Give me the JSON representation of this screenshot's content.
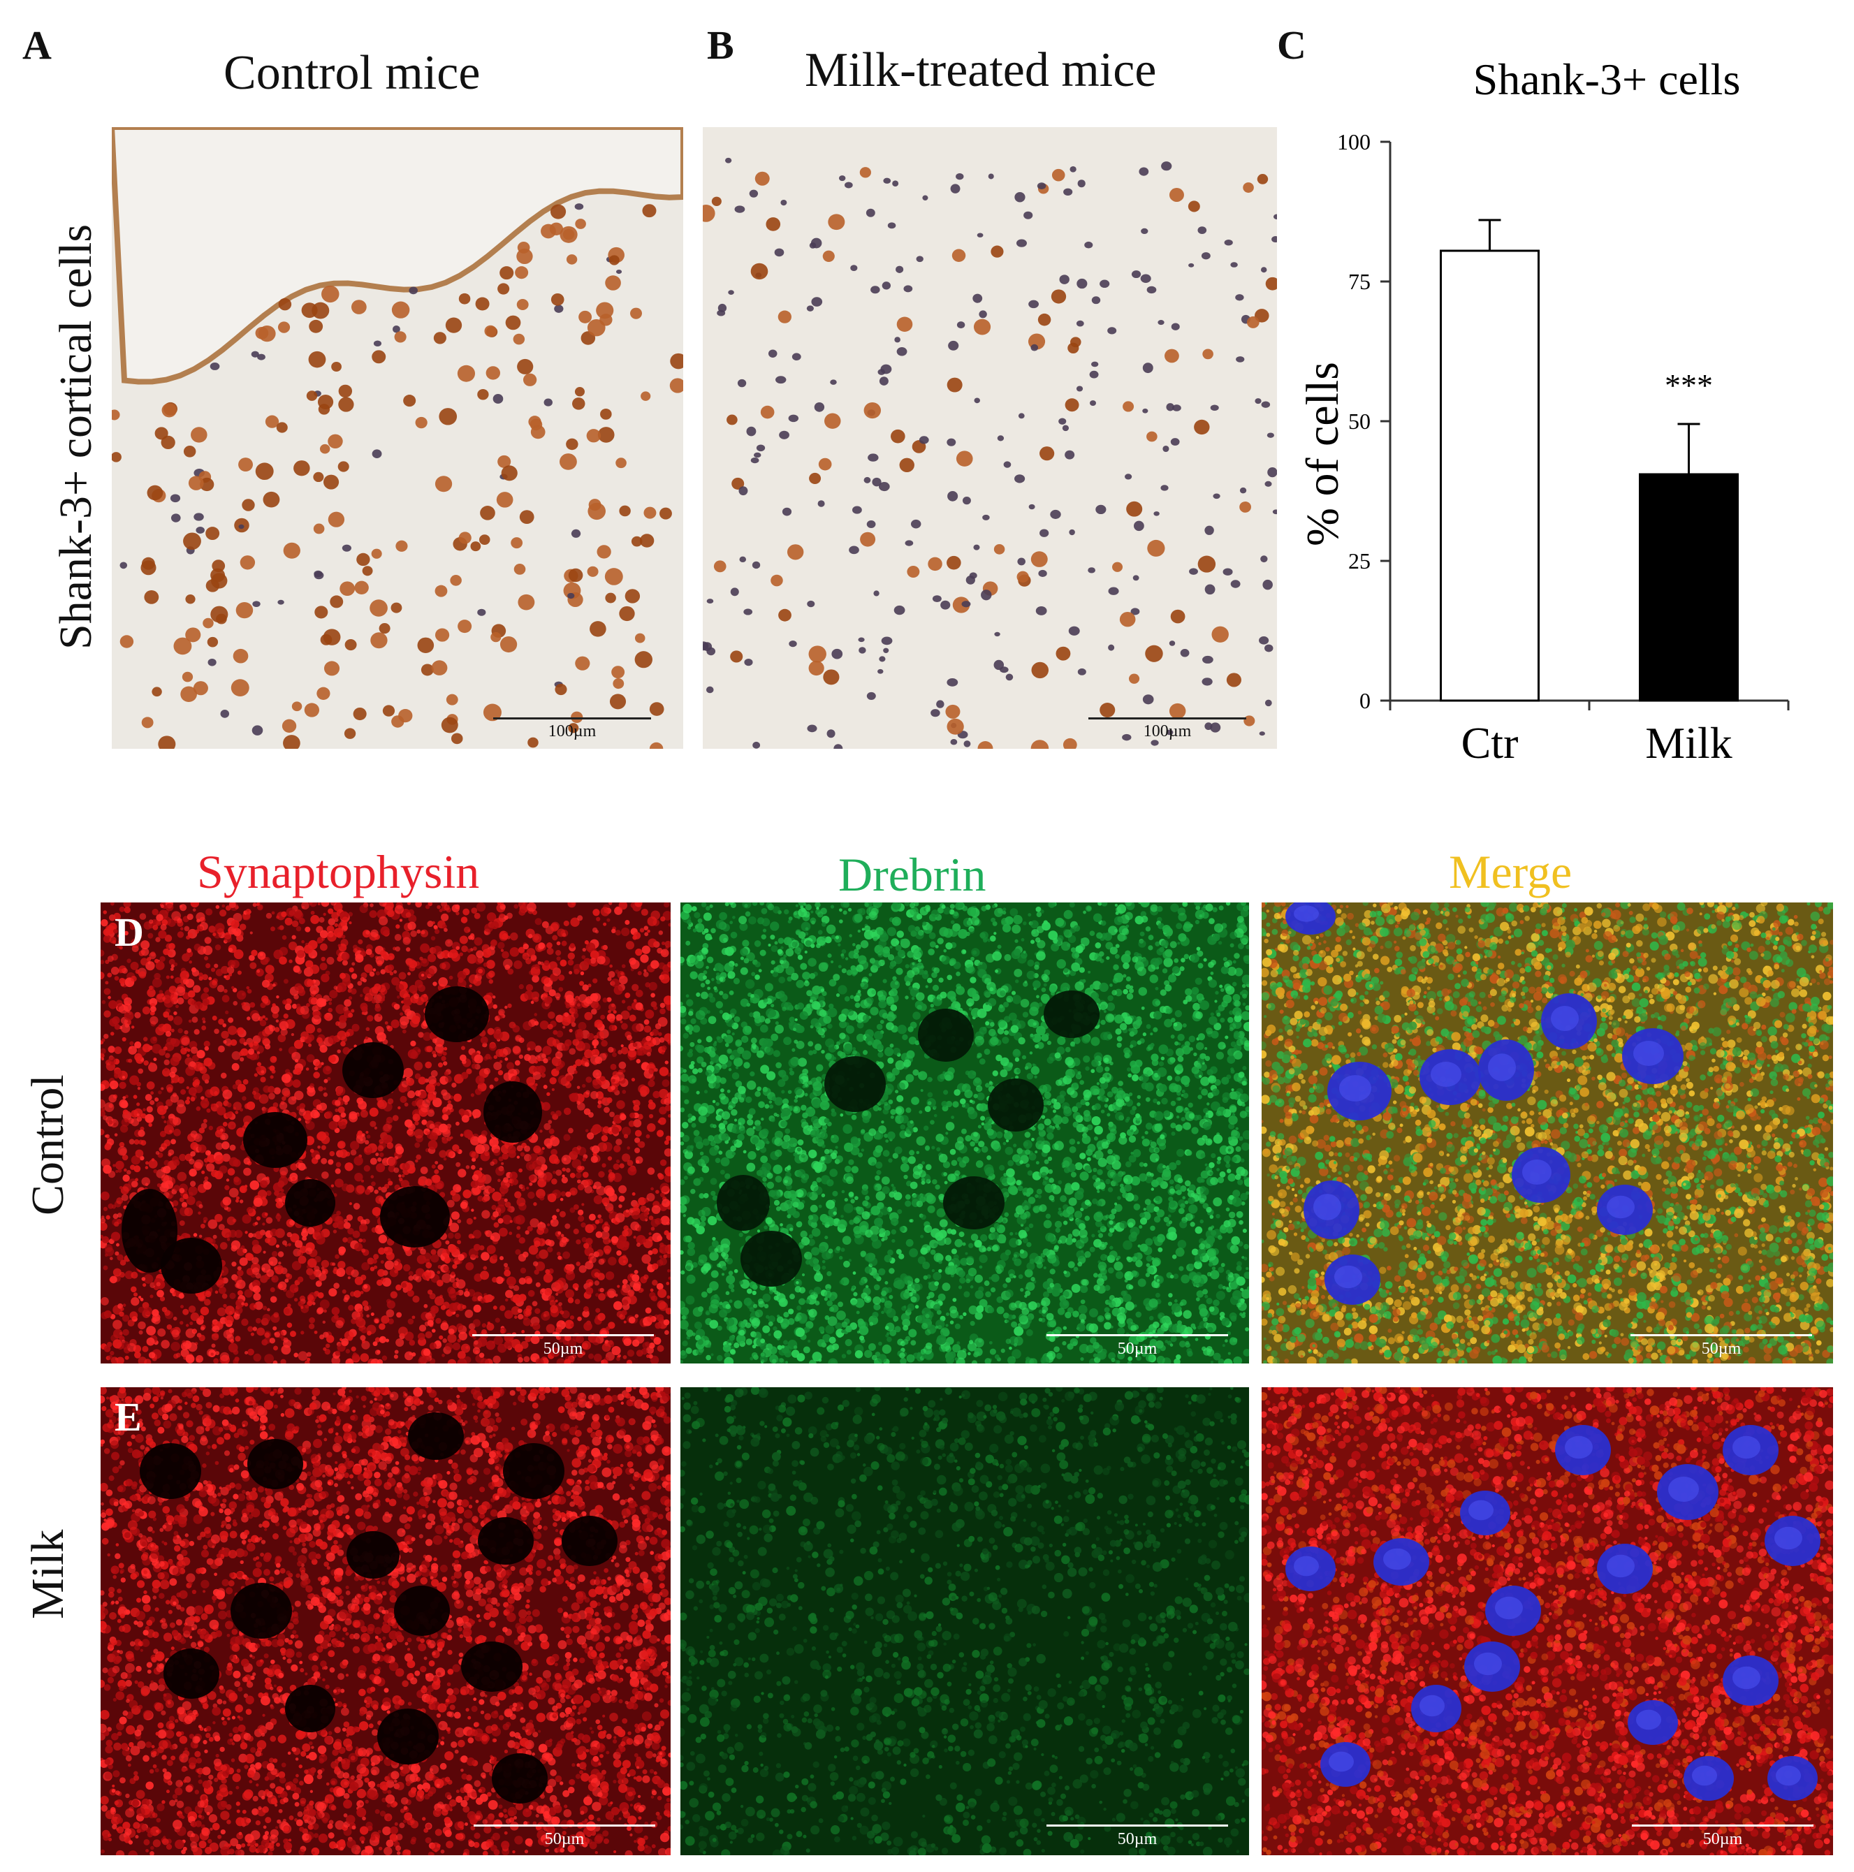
{
  "panels": {
    "A": {
      "letter": "A",
      "title": "Control mice",
      "scale_bar": "100µm"
    },
    "B": {
      "letter": "B",
      "title": "Milk-treated mice",
      "scale_bar": "100µm"
    },
    "C": {
      "letter": "C"
    },
    "D": {
      "letter": "D"
    },
    "E": {
      "letter": "E"
    }
  },
  "row_labels": {
    "ihc": "Shank-3+ cortical cells",
    "control": "Control",
    "milk": "Milk"
  },
  "column_labels": {
    "synaptophysin": "Synaptophysin",
    "drebrin": "Drebrin",
    "merge": "Merge"
  },
  "fluorescence_scale_bar": "50µm",
  "colors": {
    "synaptophysin": "#e8202a",
    "drebrin": "#1fae5a",
    "merge": "#f0c020",
    "ihc_positive": "#a8511a",
    "ihc_negative": "#4a3d55",
    "nuclei": "#2a2fd0"
  },
  "chart_data": {
    "type": "bar",
    "title": "Shank-3+ cells",
    "categories": [
      "Ctr",
      "Milk"
    ],
    "values": [
      80.5,
      40.5
    ],
    "errors": [
      5.5,
      9.0
    ],
    "bar_colors": [
      "#ffffff",
      "#000000"
    ],
    "significance": [
      "",
      "***"
    ],
    "ylabel": "% of cells",
    "xlabel": "",
    "ylim": [
      0,
      100
    ],
    "yticks": [
      0,
      25,
      50,
      75,
      100
    ],
    "grid": false
  }
}
